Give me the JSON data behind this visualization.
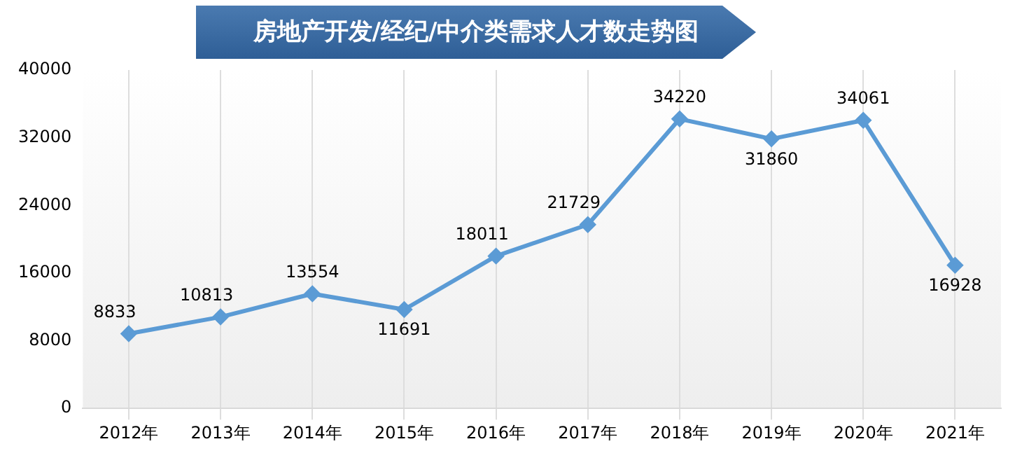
{
  "chart_data": {
    "type": "line",
    "title": "房地产开发/经纪/中介类需求人才数走势图",
    "categories": [
      "2012年",
      "2013年",
      "2014年",
      "2015年",
      "2016年",
      "2017年",
      "2018年",
      "2019年",
      "2020年",
      "2021年"
    ],
    "series": [
      {
        "color": "#5b9bd5",
        "values": [
          8833,
          10813,
          13554,
          11691,
          18011,
          21729,
          34220,
          31860,
          34061,
          16928
        ]
      }
    ],
    "ylim": [
      0,
      40000
    ],
    "yticks": [
      0,
      8000,
      16000,
      24000,
      32000,
      40000
    ],
    "grid": "x",
    "legend": false,
    "marker": "diamond",
    "line_style": "solid",
    "data_labels": true
  }
}
